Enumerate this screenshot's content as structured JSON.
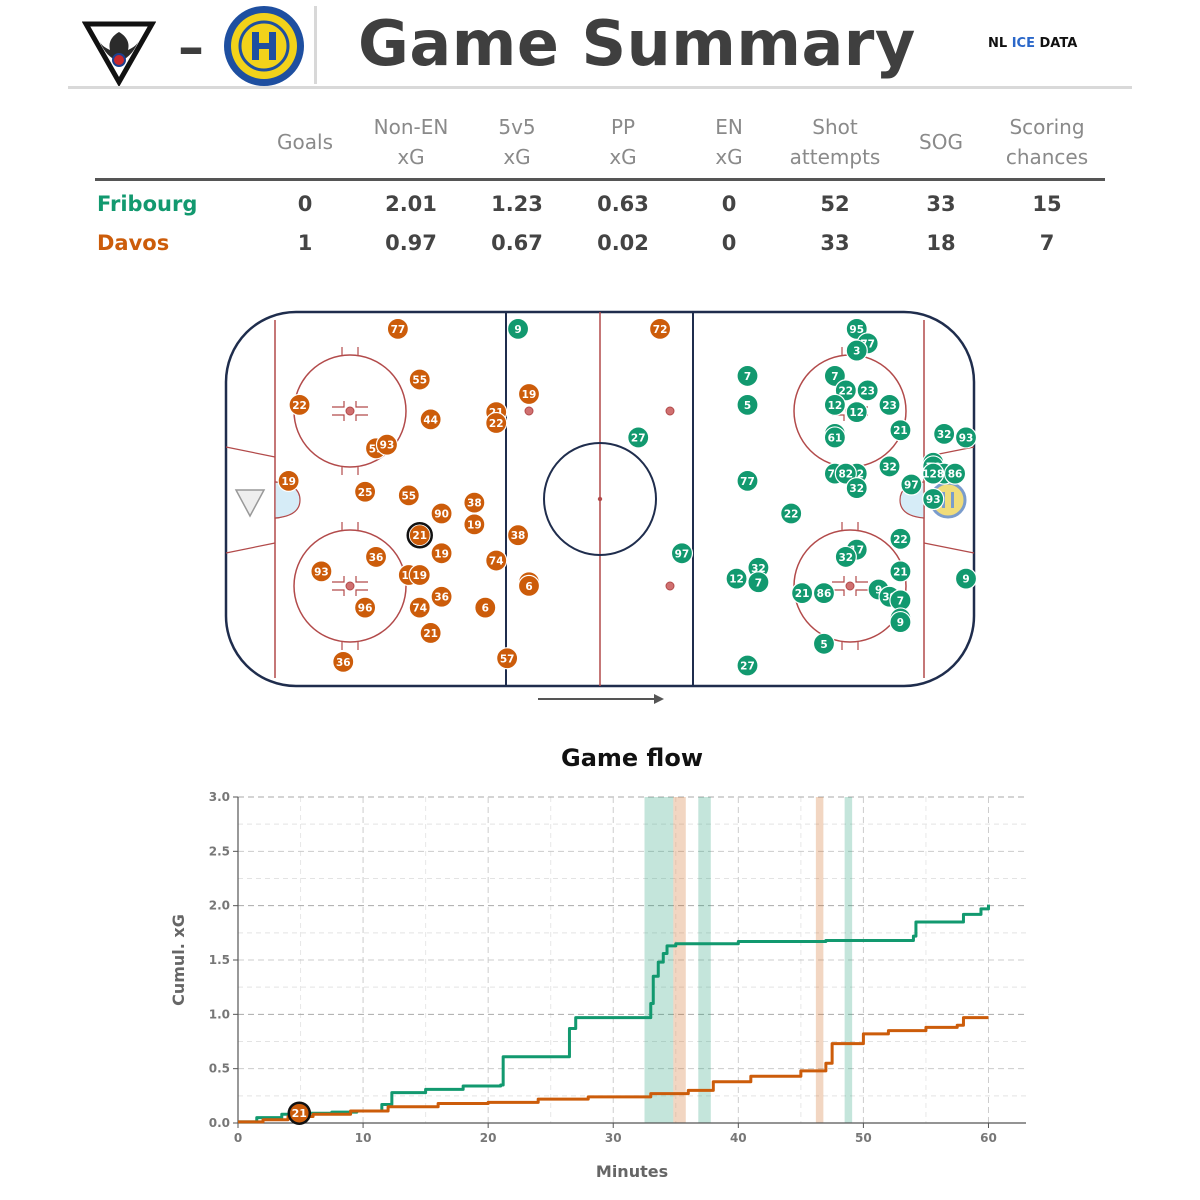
{
  "header": {
    "dash": "–",
    "title": "Game Summary",
    "brand": {
      "nl": "NL ",
      "ice": "ICE",
      "data": " DATA"
    }
  },
  "stats_table": {
    "columns": [
      {
        "lines": [
          "Goals"
        ]
      },
      {
        "lines": [
          "Non-EN",
          "xG"
        ]
      },
      {
        "lines": [
          "5v5",
          "xG"
        ]
      },
      {
        "lines": [
          "PP",
          "xG"
        ]
      },
      {
        "lines": [
          "EN",
          "xG"
        ]
      },
      {
        "lines": [
          "Shot",
          "attempts"
        ]
      },
      {
        "lines": [
          "SOG"
        ]
      },
      {
        "lines": [
          "Scoring",
          "chances"
        ]
      }
    ],
    "rows": [
      {
        "team": "Fribourg",
        "color": "#12996f",
        "values": [
          "0",
          "2.01",
          "1.23",
          "0.63",
          "0",
          "52",
          "33",
          "15"
        ]
      },
      {
        "team": "Davos",
        "color": "#cc5c0a",
        "values": [
          "1",
          "0.97",
          "0.67",
          "0.02",
          "0",
          "33",
          "18",
          "7"
        ]
      }
    ]
  },
  "colors": {
    "fribourg": "#12996f",
    "davos": "#cc5c0a",
    "rink_line": "#1f2d4d",
    "red_line": "#b24a4a"
  },
  "shot_map": {
    "davos_shots": [
      [
        "77",
        15,
        3
      ],
      [
        "72",
        39,
        3
      ],
      [
        "19",
        27,
        21
      ],
      [
        "55",
        17,
        17
      ],
      [
        "22",
        6,
        24
      ],
      [
        "44",
        18,
        28
      ],
      [
        "21",
        24,
        26
      ],
      [
        "22",
        24,
        29
      ],
      [
        "59",
        13,
        36
      ],
      [
        "93",
        14,
        35
      ],
      [
        "19",
        5,
        45
      ],
      [
        "25",
        12,
        48
      ],
      [
        "55",
        16,
        49
      ],
      [
        "38",
        22,
        51
      ],
      [
        "90",
        19,
        54
      ],
      [
        "19",
        22,
        57
      ],
      [
        "21",
        17,
        60
      ],
      [
        "38",
        26,
        60
      ],
      [
        "36",
        13,
        66
      ],
      [
        "19",
        19,
        65
      ],
      [
        "74",
        24,
        67
      ],
      [
        "93",
        8,
        70
      ],
      [
        "19",
        16,
        71
      ],
      [
        "19",
        17,
        71
      ],
      [
        "6",
        27,
        73
      ],
      [
        "6",
        27,
        74
      ],
      [
        "36",
        19,
        77
      ],
      [
        "96",
        12,
        80
      ],
      [
        "74",
        17,
        80
      ],
      [
        "6",
        23,
        80
      ],
      [
        "21",
        18,
        87
      ],
      [
        "36",
        10,
        95
      ],
      [
        "57",
        25,
        94
      ]
    ],
    "fribourg_shots": [
      [
        "9",
        26,
        3
      ],
      [
        "32",
        57,
        3
      ],
      [
        "95",
        57,
        3
      ],
      [
        "77",
        58,
        7
      ],
      [
        "3",
        57,
        9
      ],
      [
        "7",
        47,
        16
      ],
      [
        "7",
        55,
        16
      ],
      [
        "22",
        56,
        20
      ],
      [
        "23",
        58,
        20
      ],
      [
        "5",
        47,
        24
      ],
      [
        "12",
        55,
        24
      ],
      [
        "12",
        57,
        26
      ],
      [
        "23",
        60,
        24
      ],
      [
        "21",
        61,
        31
      ],
      [
        "22",
        55,
        32
      ],
      [
        "61",
        55,
        33
      ],
      [
        "32",
        65,
        32
      ],
      [
        "93",
        67,
        33
      ],
      [
        "27",
        37,
        33
      ],
      [
        "32",
        64,
        40
      ],
      [
        "32",
        60,
        41
      ],
      [
        "76",
        64,
        41
      ],
      [
        "86",
        65,
        43
      ],
      [
        "77",
        55,
        43
      ],
      [
        "32",
        57,
        43
      ],
      [
        "82",
        56,
        43
      ],
      [
        "86",
        66,
        43
      ],
      [
        "128",
        64,
        43
      ],
      [
        "97",
        62,
        46
      ],
      [
        "77",
        47,
        45
      ],
      [
        "32",
        57,
        47
      ],
      [
        "93",
        64,
        50
      ],
      [
        "22",
        51,
        54
      ],
      [
        "22",
        61,
        61
      ],
      [
        "17",
        57,
        64
      ],
      [
        "32",
        56,
        66
      ],
      [
        "97",
        41,
        65
      ],
      [
        "32",
        48,
        69
      ],
      [
        "21",
        61,
        70
      ],
      [
        "12",
        46,
        72
      ],
      [
        "7",
        48,
        73
      ],
      [
        "21",
        52,
        76
      ],
      [
        "86",
        54,
        76
      ],
      [
        "9",
        59,
        75
      ],
      [
        "39",
        60,
        77
      ],
      [
        "7",
        61,
        78
      ],
      [
        "9",
        67,
        72
      ],
      [
        "27",
        61,
        83
      ],
      [
        "9",
        61,
        84
      ],
      [
        "5",
        54,
        90
      ],
      [
        "27",
        47,
        96
      ]
    ],
    "highlighted_goal": {
      "number": "21",
      "team": "Davos"
    }
  },
  "chart_data": {
    "type": "line",
    "title": "Game flow",
    "xlabel": "Minutes",
    "ylabel": "Cumul. xG",
    "xlim": [
      0,
      63
    ],
    "ylim": [
      0,
      3.0
    ],
    "xticks": [
      0,
      10,
      20,
      30,
      40,
      50,
      60
    ],
    "yticks": [
      "0.0",
      "0.5",
      "1.0",
      "1.5",
      "2.0",
      "2.5",
      "3.0"
    ],
    "grid": true,
    "series": [
      {
        "name": "Fribourg",
        "color": "#12996f",
        "x": [
          0,
          1.5,
          3.5,
          5.5,
          7.5,
          9.5,
          11.5,
          12.3,
          15,
          18,
          21,
          21.2,
          26.5,
          27,
          33,
          33.2,
          33.6,
          34,
          34.3,
          35,
          35.6,
          40,
          47,
          54,
          54.2,
          58,
          59.4,
          60
        ],
        "y": [
          0.01,
          0.05,
          0.08,
          0.09,
          0.1,
          0.11,
          0.17,
          0.28,
          0.31,
          0.34,
          0.35,
          0.61,
          0.87,
          0.97,
          1.1,
          1.35,
          1.48,
          1.56,
          1.63,
          1.65,
          1.65,
          1.67,
          1.68,
          1.72,
          1.85,
          1.92,
          1.97,
          2.01
        ]
      },
      {
        "name": "Davos",
        "color": "#cc5c0a",
        "x": [
          0,
          2,
          4,
          6,
          9,
          12,
          16,
          20,
          24,
          28,
          33,
          36,
          38,
          41,
          45,
          47,
          47.5,
          50,
          52,
          55,
          57.5,
          58,
          60
        ],
        "y": [
          0.01,
          0.03,
          0.06,
          0.08,
          0.11,
          0.15,
          0.18,
          0.19,
          0.22,
          0.24,
          0.27,
          0.3,
          0.38,
          0.43,
          0.48,
          0.55,
          0.73,
          0.82,
          0.85,
          0.88,
          0.9,
          0.97,
          0.97
        ]
      }
    ],
    "powerplay_bands": [
      {
        "team": "Fribourg",
        "from": 32.5,
        "to": 34.8
      },
      {
        "team": "Davos",
        "from": 34.8,
        "to": 35.8
      },
      {
        "team": "Fribourg",
        "from": 36.8,
        "to": 37.8
      },
      {
        "team": "Davos",
        "from": 46.2,
        "to": 46.8
      },
      {
        "team": "Fribourg",
        "from": 48.5,
        "to": 49.1
      }
    ],
    "goal_markers": [
      {
        "number": "21",
        "team": "Davos",
        "minute": 4.9,
        "y": 0.09
      }
    ]
  }
}
